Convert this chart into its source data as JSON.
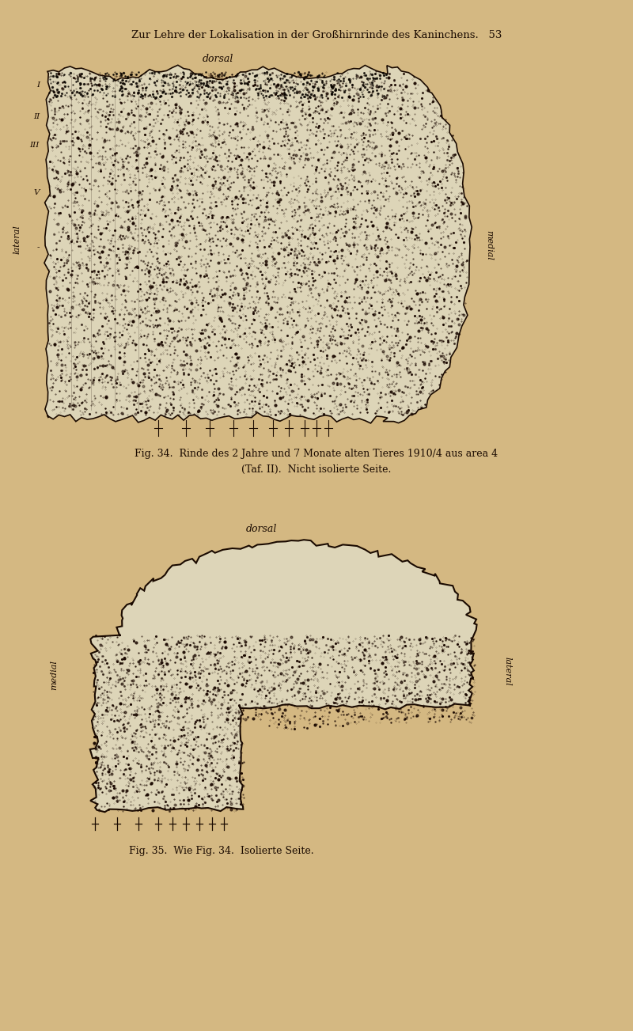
{
  "bg_color": "#d4b882",
  "text_color": "#1a0a00",
  "tissue_color": "#e8e0cc",
  "tissue_dark": "#b8a880",
  "outline_color": "#1a0a00",
  "title_text": "Zur Lehre der Lokalisation in der Großhirnrinde des Kaninchens.",
  "page_number": "53",
  "fig34_caption_line1": "Fig. 34.  Rinde des 2 Jahre und 7 Monate alten Tieres 1910/4 aus area 4",
  "fig34_caption_line2": "(Taf. II).  Nicht isolierte Seite.",
  "fig35_caption": "Fig. 35.  Wie Fig. 34.  Isolierte Seite.",
  "dorsal1": "dorsal",
  "dorsal2": "dorsal",
  "lateral1": "lateral",
  "medial1": "medial",
  "medial2": "medial",
  "lateral2": "lateral"
}
